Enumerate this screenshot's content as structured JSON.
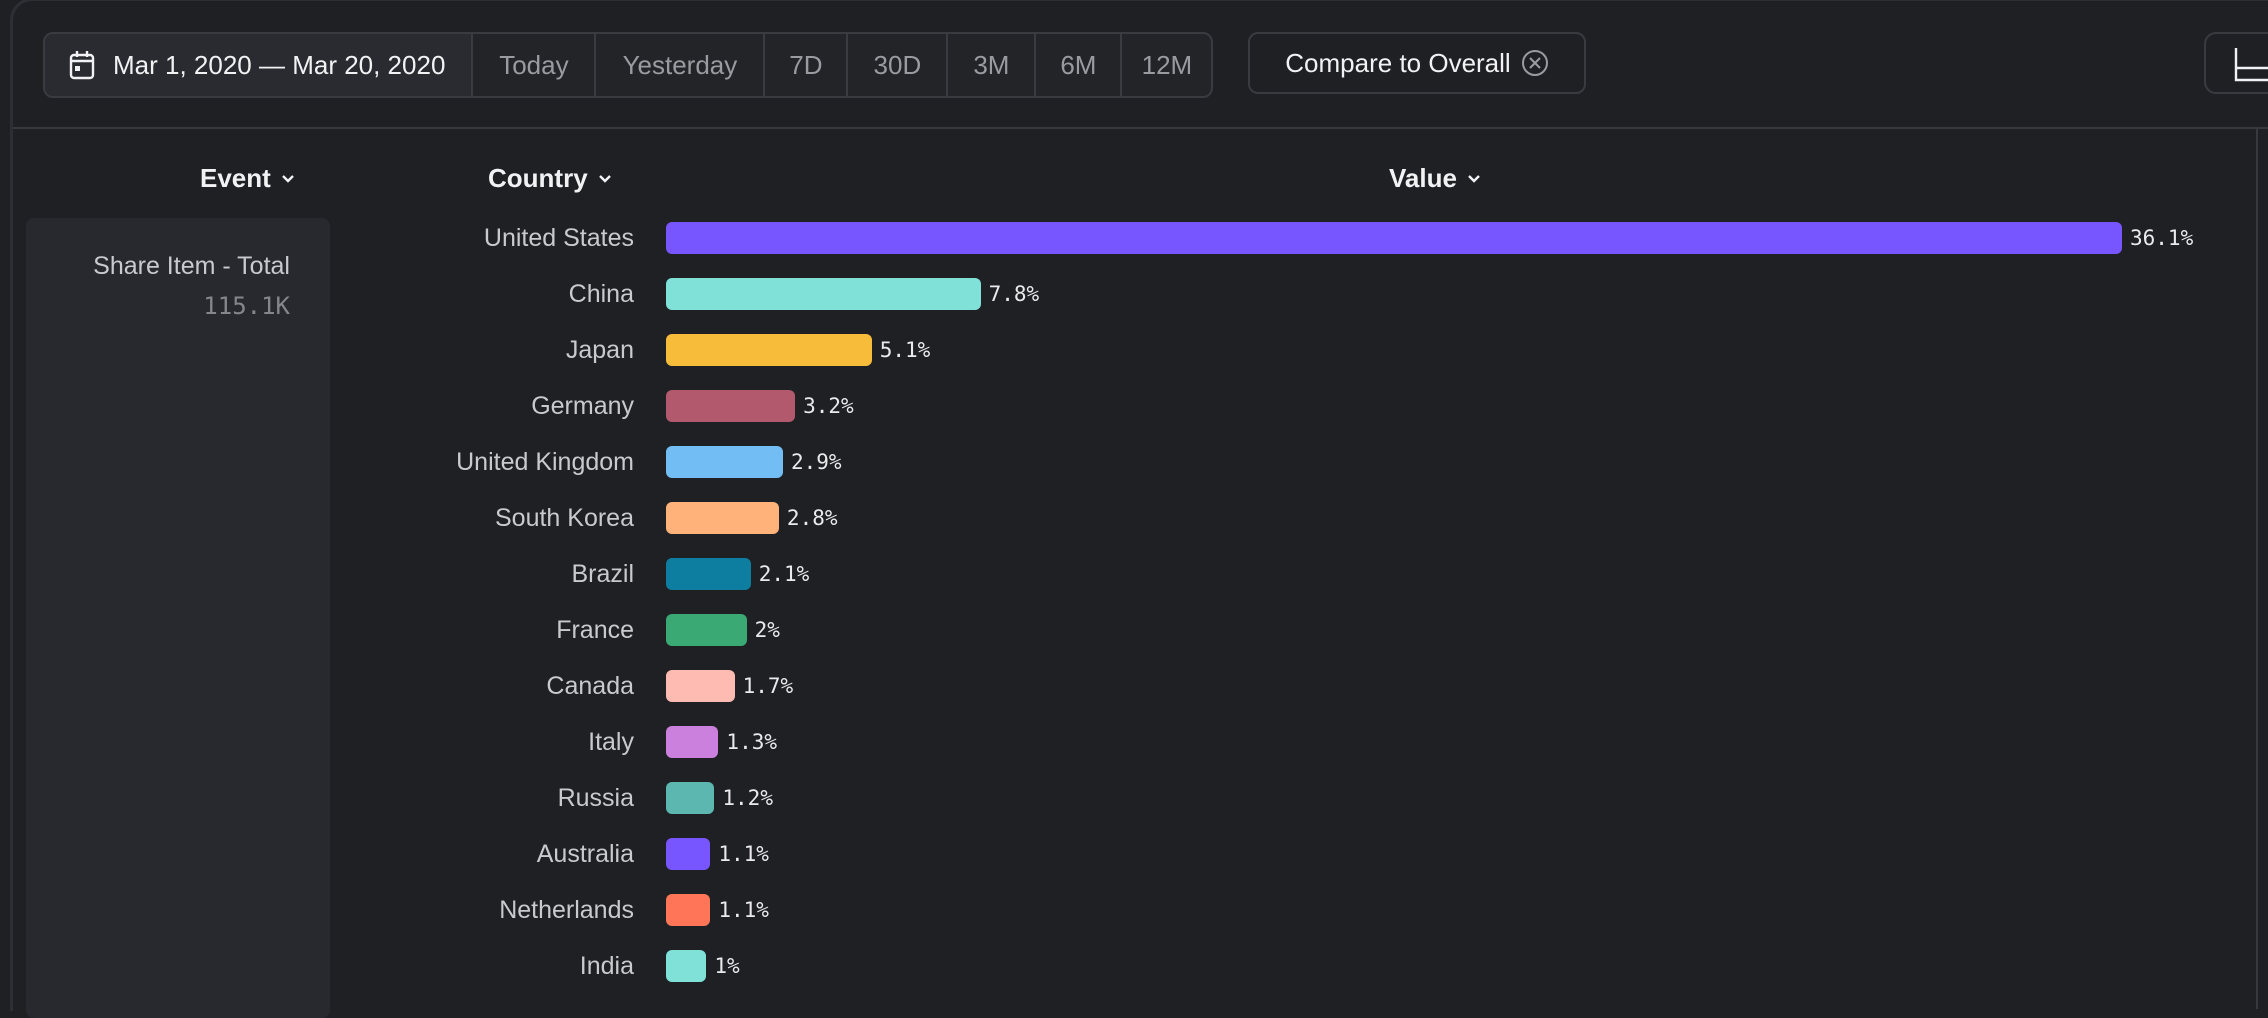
{
  "toolbar": {
    "date_range": "Mar 1, 2020 — Mar 20, 2020",
    "presets": [
      "Today",
      "Yesterday",
      "7D",
      "30D",
      "3M",
      "6M",
      "12M"
    ],
    "compare_label": "Compare to Overall",
    "icons": {
      "date": "calendar-icon",
      "compare": "close-circle-icon",
      "right": "chart-icon"
    }
  },
  "headers": {
    "event": "Event",
    "country": "Country",
    "value": "Value"
  },
  "event": {
    "name": "Share Item - Total",
    "value": "115.1K"
  },
  "chart_data": {
    "type": "bar",
    "orientation": "horizontal",
    "categories": [
      "United States",
      "China",
      "Japan",
      "Germany",
      "United Kingdom",
      "South Korea",
      "Brazil",
      "France",
      "Canada",
      "Italy",
      "Russia",
      "Australia",
      "Netherlands",
      "India"
    ],
    "values": [
      36.1,
      7.8,
      5.1,
      3.2,
      2.9,
      2.8,
      2.1,
      2,
      1.7,
      1.3,
      1.2,
      1.1,
      1.1,
      1
    ],
    "labels": [
      "36.1%",
      "7.8%",
      "5.1%",
      "3.2%",
      "2.9%",
      "2.8%",
      "2.1%",
      "2%",
      "1.7%",
      "1.3%",
      "1.2%",
      "1.1%",
      "1.1%",
      "1%"
    ],
    "colors": [
      "#7856ff",
      "#80e1d9",
      "#f8bc3b",
      "#b2596e",
      "#72bef4",
      "#ffb27a",
      "#0d7ea0",
      "#3ba974",
      "#febbb2",
      "#ca80dc",
      "#5bb7af",
      "#7856ff",
      "#ff7557",
      "#80e1d9"
    ],
    "unit": "%"
  }
}
